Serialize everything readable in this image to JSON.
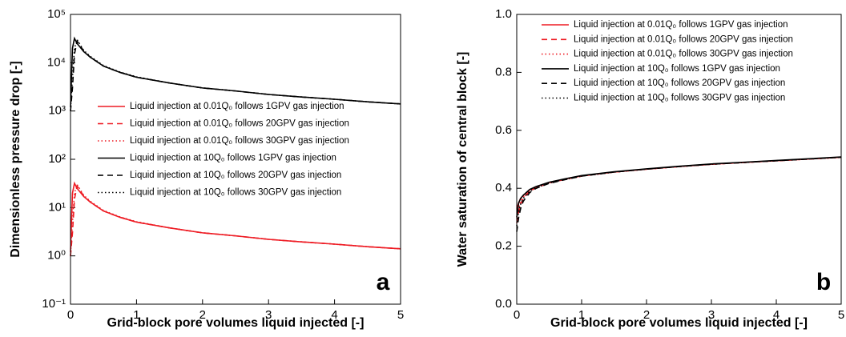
{
  "chart_data": [
    {
      "type": "line",
      "xlabel": "Grid-block pore volumes liquid injected [-]",
      "ylabel": "Dimensionless pressure drop [-]",
      "annotation": "a",
      "log_y": true,
      "legend": "center right",
      "x": [
        0,
        0.03,
        0.06,
        0.1,
        0.2,
        0.3,
        0.5,
        0.75,
        1,
        1.5,
        2,
        2.5,
        3,
        3.5,
        4,
        4.5,
        5
      ],
      "xlim": [
        0,
        5
      ],
      "xticks": [
        0,
        1,
        2,
        3,
        4,
        5
      ],
      "ylim": [
        0.1,
        100000
      ],
      "yticks": [
        {
          "value": 0.1,
          "label": "10⁻¹"
        },
        {
          "value": 1,
          "label": "10⁰"
        },
        {
          "value": 10,
          "label": "10¹"
        },
        {
          "value": 100,
          "label": "10²"
        },
        {
          "value": 1000,
          "label": "10³"
        },
        {
          "value": 10000,
          "label": "10⁴"
        },
        {
          "value": 100000,
          "label": "10⁵"
        }
      ],
      "series": [
        {
          "name": "Liquid injection at 0.01Q₀ follows 1GPV gas injection",
          "color": "#ee1c24",
          "style": "solid",
          "values": [
            1.2,
            20,
            32,
            25,
            17,
            13,
            8.5,
            6.3,
            5,
            3.8,
            3,
            2.6,
            2.2,
            1.95,
            1.75,
            1.55,
            1.4
          ]
        },
        {
          "name": "Liquid injection at 0.01Q₀ follows 20GPV gas injection",
          "color": "#ee1c24",
          "style": "dash",
          "values": [
            1,
            3,
            15,
            28,
            17.5,
            13,
            8.5,
            6.3,
            5,
            3.8,
            3,
            2.6,
            2.2,
            1.95,
            1.75,
            1.55,
            1.4
          ]
        },
        {
          "name": "Liquid injection at 0.01Q₀ follows 30GPV gas injection",
          "color": "#ee1c24",
          "style": "dot",
          "values": [
            1,
            5,
            20,
            30,
            18,
            13.5,
            8.7,
            6.4,
            5.1,
            3.8,
            3,
            2.6,
            2.2,
            1.95,
            1.75,
            1.55,
            1.4
          ]
        },
        {
          "name": "Liquid injection at 10Q₀ follows 1GPV gas injection",
          "color": "#000000",
          "style": "solid",
          "values": [
            1200,
            20000,
            32000,
            25000,
            17000,
            13000,
            8500,
            6300,
            5000,
            3800,
            3000,
            2600,
            2200,
            1950,
            1750,
            1550,
            1400
          ]
        },
        {
          "name": "Liquid injection at 10Q₀ follows 20GPV gas injection",
          "color": "#000000",
          "style": "dash",
          "values": [
            1000,
            3000,
            15000,
            28000,
            17500,
            13000,
            8500,
            6300,
            5000,
            3800,
            3000,
            2600,
            2200,
            1950,
            1750,
            1550,
            1400
          ]
        },
        {
          "name": "Liquid injection at 10Q₀ follows 30GPV gas injection",
          "color": "#000000",
          "style": "dot",
          "values": [
            1000,
            5000,
            20000,
            30000,
            18000,
            13500,
            8700,
            6400,
            5100,
            3800,
            3000,
            2600,
            2200,
            1950,
            1750,
            1550,
            1400
          ]
        }
      ]
    },
    {
      "type": "line",
      "xlabel": "Grid-block pore volumes liquid injected [-]",
      "ylabel": "Water saturation of central block [-]",
      "annotation": "b",
      "log_y": false,
      "legend": "upper right",
      "x": [
        0,
        0.03,
        0.06,
        0.1,
        0.2,
        0.3,
        0.5,
        0.75,
        1,
        1.5,
        2,
        2.5,
        3,
        3.5,
        4,
        4.5,
        5
      ],
      "xlim": [
        0,
        5
      ],
      "xticks": [
        0,
        1,
        2,
        3,
        4,
        5
      ],
      "ylim": [
        0,
        1
      ],
      "yticks": [
        {
          "value": 0,
          "label": "0.0"
        },
        0.2,
        0.4,
        0.6,
        0.8,
        {
          "value": 1,
          "label": "1.0"
        }
      ],
      "series": [
        {
          "name": "Liquid injection at 0.01Q₀ follows 1GPV gas injection",
          "color": "#ee1c24",
          "style": "solid",
          "values": [
            0.33,
            0.35,
            0.365,
            0.375,
            0.395,
            0.405,
            0.42,
            0.432,
            0.443,
            0.456,
            0.466,
            0.475,
            0.483,
            0.489,
            0.495,
            0.501,
            0.507
          ]
        },
        {
          "name": "Liquid injection at 0.01Q₀ follows 20GPV gas injection",
          "color": "#ee1c24",
          "style": "dash",
          "values": [
            0.28,
            0.32,
            0.345,
            0.365,
            0.39,
            0.402,
            0.418,
            0.431,
            0.442,
            0.456,
            0.466,
            0.475,
            0.483,
            0.489,
            0.495,
            0.501,
            0.507
          ]
        },
        {
          "name": "Liquid injection at 0.01Q₀ follows 30GPV gas injection",
          "color": "#ee1c24",
          "style": "dot",
          "values": [
            0.3,
            0.33,
            0.355,
            0.37,
            0.392,
            0.403,
            0.419,
            0.431,
            0.442,
            0.456,
            0.466,
            0.475,
            0.483,
            0.489,
            0.495,
            0.501,
            0.507
          ]
        },
        {
          "name": "Liquid injection at 10Q₀ follows 1GPV gas injection",
          "color": "#000000",
          "style": "solid",
          "values": [
            0.3,
            0.35,
            0.365,
            0.376,
            0.396,
            0.406,
            0.421,
            0.433,
            0.444,
            0.457,
            0.467,
            0.476,
            0.484,
            0.49,
            0.496,
            0.502,
            0.508
          ]
        },
        {
          "name": "Liquid injection at 10Q₀ follows 20GPV gas injection",
          "color": "#000000",
          "style": "dash",
          "values": [
            0.25,
            0.3,
            0.33,
            0.355,
            0.385,
            0.4,
            0.417,
            0.43,
            0.442,
            0.456,
            0.466,
            0.475,
            0.483,
            0.489,
            0.495,
            0.501,
            0.507
          ]
        },
        {
          "name": "Liquid injection at 10Q₀ follows 30GPV gas injection",
          "color": "#000000",
          "style": "dot",
          "values": [
            0.27,
            0.32,
            0.345,
            0.365,
            0.39,
            0.402,
            0.418,
            0.431,
            0.442,
            0.456,
            0.466,
            0.475,
            0.483,
            0.489,
            0.495,
            0.501,
            0.507
          ]
        }
      ]
    }
  ]
}
